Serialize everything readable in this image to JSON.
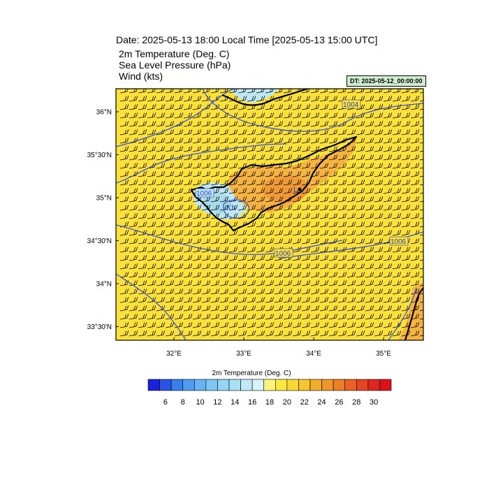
{
  "header": {
    "date_line": "Date: 2025-05-13  18:00 Local Time [2025-05-13  15:00 UTC]",
    "variables": [
      "2m Temperature (Deg. C)",
      "Sea Level Pressure   (hPa)",
      "Wind   (kts)"
    ],
    "dt_label": "DT: 2025-05-12_00:00:00"
  },
  "map": {
    "lat_labels": [
      "36°N",
      "35°30'N",
      "35°N",
      "34°30'N",
      "34°N",
      "33°30'N"
    ],
    "lon_labels": [
      "32°E",
      "33°E",
      "34°E",
      "35°E"
    ],
    "lat_values": [
      36.0,
      35.5,
      35.0,
      34.5,
      34.0,
      33.5
    ],
    "lon_values": [
      32.0,
      33.0,
      34.0,
      35.0
    ],
    "isobar_labels": [
      "1004",
      "1006",
      "1006",
      "1006"
    ],
    "pressure_marker": "L",
    "place_label": "Kh",
    "colors": {
      "background_fill": "#fbe13a",
      "warm_fill": "#f6b340",
      "hot_fill": "#f09a35",
      "cool_fill": "#bfe9f2",
      "cold_fill": "#a8dcea",
      "isobar": "#3a55c8",
      "coast": "#000000"
    }
  },
  "colorbar": {
    "title": "2m Temperature (Deg. C)",
    "tick_labels": [
      "6",
      "8",
      "10",
      "12",
      "14",
      "16",
      "18",
      "20",
      "22",
      "24",
      "26",
      "28",
      "30"
    ],
    "colors": [
      "#1b23d8",
      "#2a52e6",
      "#3a7fee",
      "#4f9bf1",
      "#67b3f3",
      "#7fc6f5",
      "#94d4f6",
      "#a9e0f6",
      "#bfe9f7",
      "#d7f3f8",
      "#fbf47a",
      "#fbe93f",
      "#fad734",
      "#f6c52f",
      "#f3ad2c",
      "#ef962a",
      "#eb7e27",
      "#e86224",
      "#e44622",
      "#e0241e",
      "#dc0f1b"
    ]
  }
}
